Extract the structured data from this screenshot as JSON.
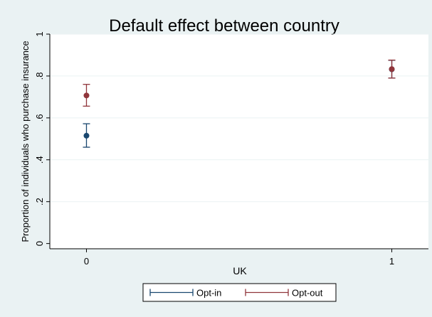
{
  "chart_data": {
    "type": "scatter",
    "title": "Default effect between country",
    "xlabel": "UK",
    "ylabel": "Proportion of individuals who purchase insurance",
    "x_ticks": [
      {
        "value": 0,
        "label": "0"
      },
      {
        "value": 1,
        "label": "1"
      }
    ],
    "y_ticks": [
      {
        "value": 0,
        "label": "0"
      },
      {
        "value": 0.2,
        "label": ".2"
      },
      {
        "value": 0.4,
        "label": ".4"
      },
      {
        "value": 0.6,
        "label": ".6"
      },
      {
        "value": 0.8,
        "label": ".8"
      },
      {
        "value": 1,
        "label": "1"
      }
    ],
    "xlim": [
      -0.12,
      1.12
    ],
    "ylim": [
      -0.025,
      1.0
    ],
    "grid": "horizontal",
    "legend_position": "bottom",
    "series": [
      {
        "name": "Opt-in",
        "color": "#1a476f",
        "points": [
          {
            "x": 0,
            "y": 0.515,
            "low": 0.46,
            "high": 0.572
          },
          {
            "x": 1,
            "y": 0.832,
            "low": 0.79,
            "high": 0.875
          }
        ]
      },
      {
        "name": "Opt-out",
        "color": "#90353b",
        "points": [
          {
            "x": 0,
            "y": 0.707,
            "low": 0.656,
            "high": 0.76
          },
          {
            "x": 1,
            "y": 0.833,
            "low": 0.79,
            "high": 0.876
          }
        ]
      }
    ]
  }
}
